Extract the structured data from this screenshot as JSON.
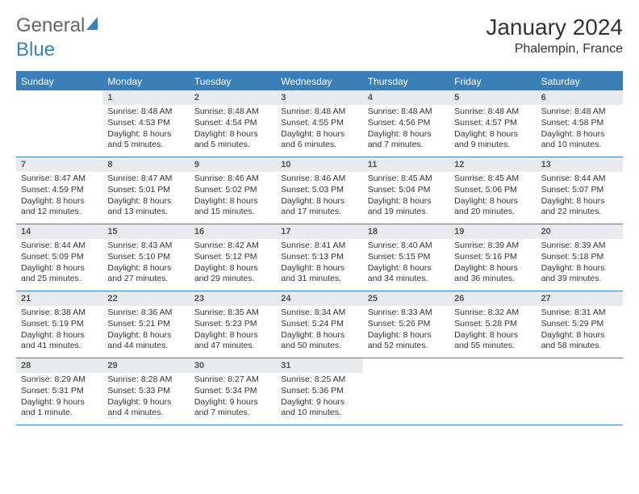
{
  "logo": {
    "part1": "General",
    "part2": "Blue"
  },
  "title": "January 2024",
  "location": "Phalempin, France",
  "weekdays": [
    "Sunday",
    "Monday",
    "Tuesday",
    "Wednesday",
    "Thursday",
    "Friday",
    "Saturday"
  ],
  "colors": {
    "accent": "#3b7fb8",
    "daynum_bg": "#e8eaed",
    "text": "#333333",
    "logo_gray": "#666666"
  },
  "weeks": [
    [
      {
        "num": "",
        "sunrise": "",
        "sunset": "",
        "daylight1": "",
        "daylight2": ""
      },
      {
        "num": "1",
        "sunrise": "Sunrise: 8:48 AM",
        "sunset": "Sunset: 4:53 PM",
        "daylight1": "Daylight: 8 hours",
        "daylight2": "and 5 minutes."
      },
      {
        "num": "2",
        "sunrise": "Sunrise: 8:48 AM",
        "sunset": "Sunset: 4:54 PM",
        "daylight1": "Daylight: 8 hours",
        "daylight2": "and 5 minutes."
      },
      {
        "num": "3",
        "sunrise": "Sunrise: 8:48 AM",
        "sunset": "Sunset: 4:55 PM",
        "daylight1": "Daylight: 8 hours",
        "daylight2": "and 6 minutes."
      },
      {
        "num": "4",
        "sunrise": "Sunrise: 8:48 AM",
        "sunset": "Sunset: 4:56 PM",
        "daylight1": "Daylight: 8 hours",
        "daylight2": "and 7 minutes."
      },
      {
        "num": "5",
        "sunrise": "Sunrise: 8:48 AM",
        "sunset": "Sunset: 4:57 PM",
        "daylight1": "Daylight: 8 hours",
        "daylight2": "and 9 minutes."
      },
      {
        "num": "6",
        "sunrise": "Sunrise: 8:48 AM",
        "sunset": "Sunset: 4:58 PM",
        "daylight1": "Daylight: 8 hours",
        "daylight2": "and 10 minutes."
      }
    ],
    [
      {
        "num": "7",
        "sunrise": "Sunrise: 8:47 AM",
        "sunset": "Sunset: 4:59 PM",
        "daylight1": "Daylight: 8 hours",
        "daylight2": "and 12 minutes."
      },
      {
        "num": "8",
        "sunrise": "Sunrise: 8:47 AM",
        "sunset": "Sunset: 5:01 PM",
        "daylight1": "Daylight: 8 hours",
        "daylight2": "and 13 minutes."
      },
      {
        "num": "9",
        "sunrise": "Sunrise: 8:46 AM",
        "sunset": "Sunset: 5:02 PM",
        "daylight1": "Daylight: 8 hours",
        "daylight2": "and 15 minutes."
      },
      {
        "num": "10",
        "sunrise": "Sunrise: 8:46 AM",
        "sunset": "Sunset: 5:03 PM",
        "daylight1": "Daylight: 8 hours",
        "daylight2": "and 17 minutes."
      },
      {
        "num": "11",
        "sunrise": "Sunrise: 8:45 AM",
        "sunset": "Sunset: 5:04 PM",
        "daylight1": "Daylight: 8 hours",
        "daylight2": "and 19 minutes."
      },
      {
        "num": "12",
        "sunrise": "Sunrise: 8:45 AM",
        "sunset": "Sunset: 5:06 PM",
        "daylight1": "Daylight: 8 hours",
        "daylight2": "and 20 minutes."
      },
      {
        "num": "13",
        "sunrise": "Sunrise: 8:44 AM",
        "sunset": "Sunset: 5:07 PM",
        "daylight1": "Daylight: 8 hours",
        "daylight2": "and 22 minutes."
      }
    ],
    [
      {
        "num": "14",
        "sunrise": "Sunrise: 8:44 AM",
        "sunset": "Sunset: 5:09 PM",
        "daylight1": "Daylight: 8 hours",
        "daylight2": "and 25 minutes."
      },
      {
        "num": "15",
        "sunrise": "Sunrise: 8:43 AM",
        "sunset": "Sunset: 5:10 PM",
        "daylight1": "Daylight: 8 hours",
        "daylight2": "and 27 minutes."
      },
      {
        "num": "16",
        "sunrise": "Sunrise: 8:42 AM",
        "sunset": "Sunset: 5:12 PM",
        "daylight1": "Daylight: 8 hours",
        "daylight2": "and 29 minutes."
      },
      {
        "num": "17",
        "sunrise": "Sunrise: 8:41 AM",
        "sunset": "Sunset: 5:13 PM",
        "daylight1": "Daylight: 8 hours",
        "daylight2": "and 31 minutes."
      },
      {
        "num": "18",
        "sunrise": "Sunrise: 8:40 AM",
        "sunset": "Sunset: 5:15 PM",
        "daylight1": "Daylight: 8 hours",
        "daylight2": "and 34 minutes."
      },
      {
        "num": "19",
        "sunrise": "Sunrise: 8:39 AM",
        "sunset": "Sunset: 5:16 PM",
        "daylight1": "Daylight: 8 hours",
        "daylight2": "and 36 minutes."
      },
      {
        "num": "20",
        "sunrise": "Sunrise: 8:39 AM",
        "sunset": "Sunset: 5:18 PM",
        "daylight1": "Daylight: 8 hours",
        "daylight2": "and 39 minutes."
      }
    ],
    [
      {
        "num": "21",
        "sunrise": "Sunrise: 8:38 AM",
        "sunset": "Sunset: 5:19 PM",
        "daylight1": "Daylight: 8 hours",
        "daylight2": "and 41 minutes."
      },
      {
        "num": "22",
        "sunrise": "Sunrise: 8:36 AM",
        "sunset": "Sunset: 5:21 PM",
        "daylight1": "Daylight: 8 hours",
        "daylight2": "and 44 minutes."
      },
      {
        "num": "23",
        "sunrise": "Sunrise: 8:35 AM",
        "sunset": "Sunset: 5:23 PM",
        "daylight1": "Daylight: 8 hours",
        "daylight2": "and 47 minutes."
      },
      {
        "num": "24",
        "sunrise": "Sunrise: 8:34 AM",
        "sunset": "Sunset: 5:24 PM",
        "daylight1": "Daylight: 8 hours",
        "daylight2": "and 50 minutes."
      },
      {
        "num": "25",
        "sunrise": "Sunrise: 8:33 AM",
        "sunset": "Sunset: 5:26 PM",
        "daylight1": "Daylight: 8 hours",
        "daylight2": "and 52 minutes."
      },
      {
        "num": "26",
        "sunrise": "Sunrise: 8:32 AM",
        "sunset": "Sunset: 5:28 PM",
        "daylight1": "Daylight: 8 hours",
        "daylight2": "and 55 minutes."
      },
      {
        "num": "27",
        "sunrise": "Sunrise: 8:31 AM",
        "sunset": "Sunset: 5:29 PM",
        "daylight1": "Daylight: 8 hours",
        "daylight2": "and 58 minutes."
      }
    ],
    [
      {
        "num": "28",
        "sunrise": "Sunrise: 8:29 AM",
        "sunset": "Sunset: 5:31 PM",
        "daylight1": "Daylight: 9 hours",
        "daylight2": "and 1 minute."
      },
      {
        "num": "29",
        "sunrise": "Sunrise: 8:28 AM",
        "sunset": "Sunset: 5:33 PM",
        "daylight1": "Daylight: 9 hours",
        "daylight2": "and 4 minutes."
      },
      {
        "num": "30",
        "sunrise": "Sunrise: 8:27 AM",
        "sunset": "Sunset: 5:34 PM",
        "daylight1": "Daylight: 9 hours",
        "daylight2": "and 7 minutes."
      },
      {
        "num": "31",
        "sunrise": "Sunrise: 8:25 AM",
        "sunset": "Sunset: 5:36 PM",
        "daylight1": "Daylight: 9 hours",
        "daylight2": "and 10 minutes."
      },
      {
        "num": "",
        "sunrise": "",
        "sunset": "",
        "daylight1": "",
        "daylight2": ""
      },
      {
        "num": "",
        "sunrise": "",
        "sunset": "",
        "daylight1": "",
        "daylight2": ""
      },
      {
        "num": "",
        "sunrise": "",
        "sunset": "",
        "daylight1": "",
        "daylight2": ""
      }
    ]
  ]
}
